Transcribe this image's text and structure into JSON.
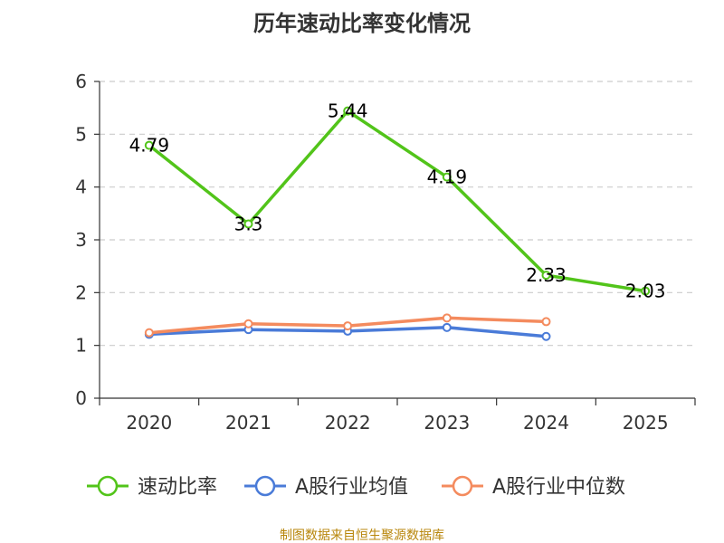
{
  "chart_data": {
    "type": "line",
    "title": "历年速动比率变化情况",
    "categories": [
      "2020",
      "2021",
      "2022",
      "2023",
      "2024",
      "2025"
    ],
    "ylim": [
      0,
      6
    ],
    "yticks": [
      0,
      1,
      2,
      3,
      4,
      5,
      6
    ],
    "grid": true,
    "legend_position": "bottom",
    "series": [
      {
        "name": "速动比率",
        "color": "#52c41a",
        "values": [
          4.79,
          3.3,
          5.44,
          4.19,
          2.33,
          2.03
        ],
        "labels": [
          "4.79",
          "3.3",
          "5.44",
          "4.19",
          "2.33",
          "2.03"
        ],
        "show_labels": true
      },
      {
        "name": "A股行业均值",
        "color": "#4a7bd8",
        "values": [
          1.21,
          1.3,
          1.27,
          1.34,
          1.17,
          null
        ],
        "show_labels": false
      },
      {
        "name": "A股行业中位数",
        "color": "#f48b5e",
        "values": [
          1.24,
          1.41,
          1.37,
          1.52,
          1.45,
          null
        ],
        "show_labels": false
      }
    ],
    "source": "制图数据来自恒生聚源数据库"
  }
}
